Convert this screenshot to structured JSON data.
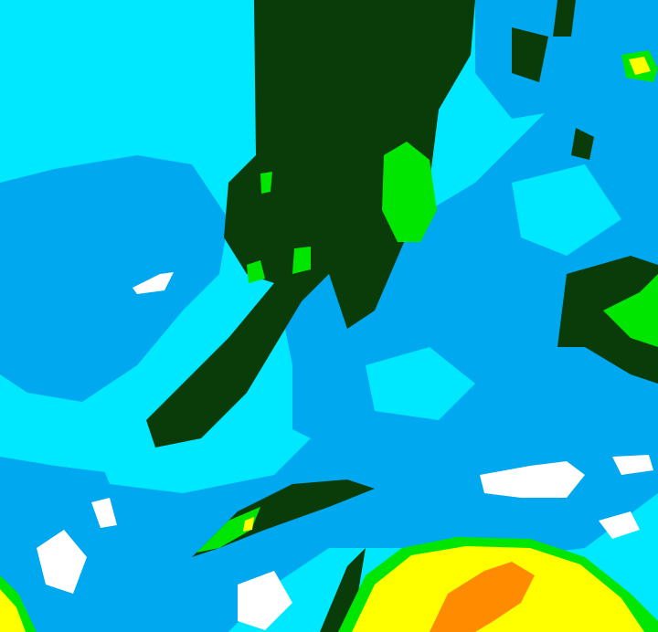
{
  "map": {
    "type": "weather-radar-intensity",
    "palette": {
      "very_light": "#ffffff",
      "light": "#00e8ff",
      "light_moderate": "#00a8f0",
      "moderate": "#0a3c0a",
      "moderate_heavy": "#00e600",
      "heavy": "#ffff00",
      "very_heavy": "#ff8c00"
    }
  }
}
